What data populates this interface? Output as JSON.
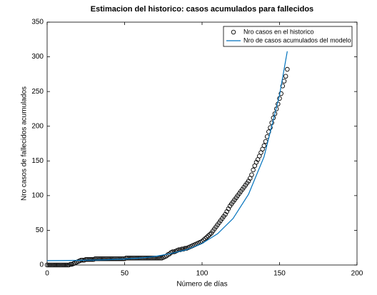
{
  "chart_data": {
    "type": "scatter+line",
    "title": "Estimacion del historico: casos acumulados para fallecidos",
    "x_label": "Número de días",
    "y_label": "Nro casos de fallecidos acumulados",
    "xlim": [
      0,
      200
    ],
    "xticks": [
      0,
      50,
      100,
      150,
      200
    ],
    "ylim": [
      0,
      350
    ],
    "yticks": [
      0,
      50,
      100,
      150,
      200,
      250,
      300,
      350
    ],
    "legend": "upper right",
    "series": [
      {
        "name": "Nro casos en el historico",
        "kind": "scatter",
        "color": "#000000",
        "x": [
          0,
          1,
          2,
          3,
          4,
          5,
          6,
          7,
          8,
          9,
          10,
          11,
          12,
          13,
          14,
          15,
          16,
          17,
          18,
          19,
          20,
          21,
          22,
          23,
          24,
          25,
          26,
          27,
          28,
          29,
          30,
          31,
          32,
          33,
          34,
          35,
          36,
          37,
          38,
          39,
          40,
          41,
          42,
          43,
          44,
          45,
          46,
          47,
          48,
          49,
          50,
          51,
          52,
          53,
          54,
          55,
          56,
          57,
          58,
          59,
          60,
          61,
          62,
          63,
          64,
          65,
          66,
          67,
          68,
          69,
          70,
          71,
          72,
          73,
          74,
          75,
          76,
          77,
          78,
          79,
          80,
          81,
          82,
          83,
          84,
          85,
          86,
          87,
          88,
          89,
          90,
          91,
          92,
          93,
          94,
          95,
          96,
          97,
          98,
          99,
          100,
          101,
          102,
          103,
          104,
          105,
          106,
          107,
          108,
          109,
          110,
          111,
          112,
          113,
          114,
          115,
          116,
          117,
          118,
          119,
          120,
          121,
          122,
          123,
          124,
          125,
          126,
          127,
          128,
          129,
          130,
          131,
          132,
          133,
          134,
          135,
          136,
          137,
          138,
          139,
          140,
          141,
          142,
          143,
          144,
          145,
          146,
          147,
          148,
          149,
          150,
          151,
          152,
          153,
          154,
          155
        ],
        "values": [
          0,
          0,
          0,
          0,
          0,
          0,
          0,
          0,
          0,
          0,
          0,
          0,
          0,
          0,
          0,
          1,
          1,
          2,
          3,
          4,
          5,
          6,
          7,
          7,
          7,
          8,
          8,
          8,
          8,
          8,
          8,
          9,
          9,
          9,
          9,
          9,
          9,
          9,
          9,
          9,
          9,
          9,
          9,
          9,
          9,
          9,
          9,
          9,
          9,
          9,
          9,
          10,
          10,
          10,
          10,
          10,
          10,
          10,
          10,
          10,
          10,
          10,
          10,
          10,
          10,
          10,
          10,
          10,
          10,
          10,
          10,
          10,
          10,
          10,
          10,
          11,
          12,
          13,
          15,
          16,
          18,
          19,
          19,
          20,
          21,
          22,
          22,
          23,
          23,
          24,
          24,
          25,
          26,
          27,
          28,
          29,
          30,
          31,
          32,
          33,
          34,
          36,
          38,
          40,
          42,
          44,
          46,
          49,
          52,
          55,
          58,
          61,
          64,
          67,
          70,
          73,
          77,
          81,
          85,
          88,
          91,
          94,
          97,
          100,
          103,
          106,
          109,
          112,
          115,
          118,
          121,
          125,
          130,
          137,
          143,
          148,
          152,
          157,
          162,
          167,
          172,
          178,
          185,
          192,
          198,
          205,
          212,
          218,
          225,
          232,
          240,
          247,
          258,
          265,
          272,
          282
        ]
      },
      {
        "name": "Nro de casos acumulados del modelo",
        "kind": "line",
        "color": "#0072bd",
        "x": [
          0,
          10,
          20,
          30,
          40,
          50,
          60,
          70,
          80,
          90,
          100,
          110,
          120,
          130,
          140,
          150,
          155
        ],
        "values": [
          6.3,
          6.4,
          6.7,
          7.1,
          7.7,
          8.6,
          10,
          12.5,
          16.5,
          22,
          31,
          45,
          67,
          102,
          156,
          245,
          308
        ]
      }
    ]
  }
}
